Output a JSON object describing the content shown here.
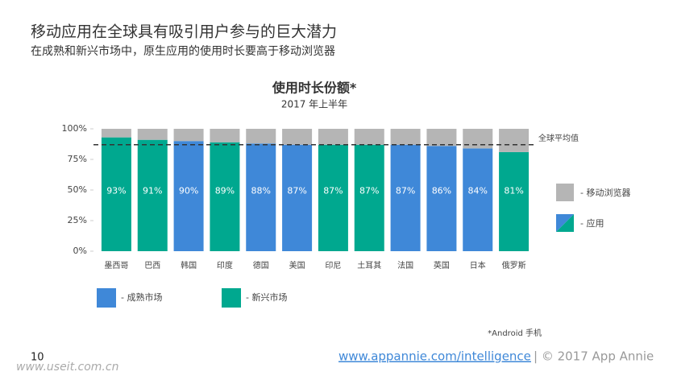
{
  "header": {
    "title": "移动应用在全球具有吸引用户参与的巨大潜力",
    "subtitle": "在成熟和新兴市场中，原生应用的使用时长要高于移动浏览器"
  },
  "chart_data": {
    "type": "stacked_bar",
    "title": "使用时长份额*",
    "subtitle": "2017 年上半年",
    "categories": [
      "墨西哥",
      "巴西",
      "韩国",
      "印度",
      "德国",
      "美国",
      "印尼",
      "土耳其",
      "法国",
      "英国",
      "日本",
      "俄罗斯"
    ],
    "series": [
      {
        "name": "- 应用",
        "values": [
          93,
          91,
          90,
          89,
          88,
          87,
          87,
          87,
          87,
          86,
          84,
          81
        ],
        "value_labels": [
          "93%",
          "91%",
          "90%",
          "89%",
          "88%",
          "87%",
          "87%",
          "87%",
          "87%",
          "86%",
          "84%",
          "81%"
        ],
        "colors": [
          "#00a88f",
          "#00a88f",
          "#3f88d8",
          "#00a88f",
          "#3f88d8",
          "#3f88d8",
          "#00a88f",
          "#00a88f",
          "#3f88d8",
          "#3f88d8",
          "#3f88d8",
          "#00a88f"
        ]
      },
      {
        "name": "- 移动浏览器",
        "color": "#b5b5b5",
        "values": [
          7,
          9,
          10,
          11,
          12,
          13,
          13,
          13,
          13,
          14,
          16,
          19
        ]
      }
    ],
    "markets": [
      {
        "name": "- 成熟市场",
        "color": "#3f88d8"
      },
      {
        "name": "- 新兴市场",
        "color": "#00a88f"
      }
    ],
    "average_line": {
      "value": 87,
      "label": "全球平均值"
    },
    "ylim": [
      0,
      100
    ],
    "yticks": [
      {
        "value": 0,
        "label": "0%"
      },
      {
        "value": 25,
        "label": "25%"
      },
      {
        "value": 50,
        "label": "50%"
      },
      {
        "value": 75,
        "label": "75%"
      },
      {
        "value": 100,
        "label": "100%"
      }
    ],
    "footnote": "*Android 手机"
  },
  "footer": {
    "page": "10",
    "url": "www.appannie.com/intelligence",
    "copyright": "| © 2017 App Annie",
    "watermark": "www.useit.com.cn"
  }
}
